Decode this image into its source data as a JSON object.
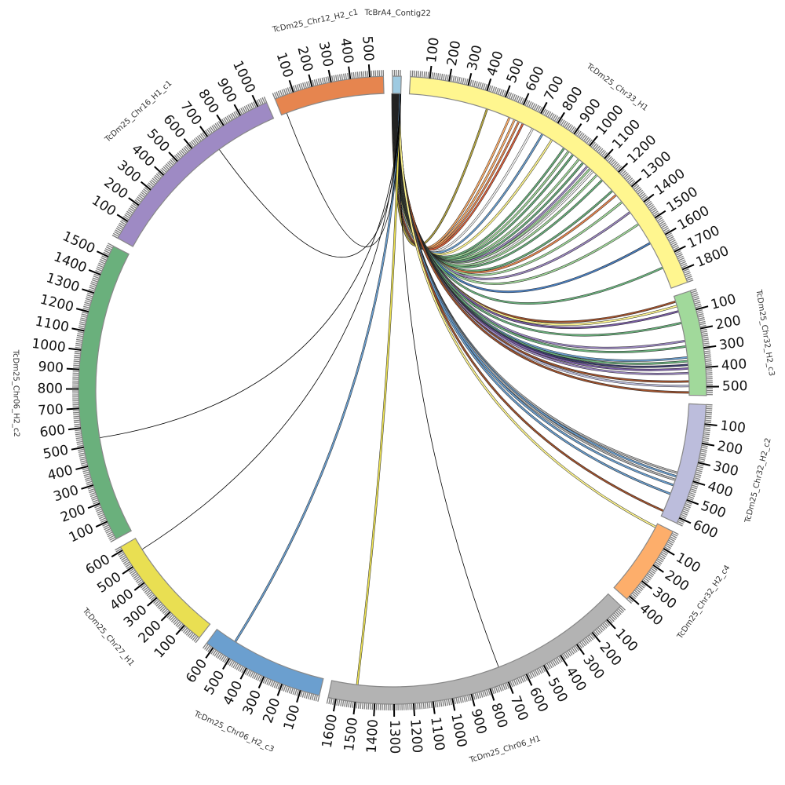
{
  "chart_data": {
    "type": "circos",
    "units": "tick units",
    "chromosomes": [
      {
        "id": "contig22",
        "label": "TcBrA4_Contig22",
        "length": 45,
        "color": "#9ecae1",
        "ticks": []
      },
      {
        "id": "chr33_h1",
        "label": "TcDm25_Chr33_H1",
        "length": 1870,
        "color": "#fff68f",
        "ticks": [
          "100",
          "200",
          "300",
          "400",
          "500",
          "600",
          "700",
          "800",
          "900",
          "1000",
          "1100",
          "1200",
          "1300",
          "1400",
          "1500",
          "1600",
          "1700",
          "1800"
        ]
      },
      {
        "id": "chr32_h2_c3",
        "label": "TcDm25_Chr32_H2_c3",
        "length": 545,
        "color": "#a1d99b",
        "ticks": [
          "100",
          "200",
          "300",
          "400",
          "500"
        ]
      },
      {
        "id": "chr32_h2_c2",
        "label": "TcDm25_Chr32_H2_c2",
        "length": 630,
        "color": "#bcbddc",
        "ticks": [
          "100",
          "200",
          "300",
          "400",
          "500",
          "600"
        ]
      },
      {
        "id": "chr32_h2_c4",
        "label": "TcDm25_Chr32_H2_c4",
        "length": 420,
        "color": "#fdae6b",
        "ticks": [
          "100",
          "200",
          "300",
          "400"
        ]
      },
      {
        "id": "chr06_h1",
        "label": "TcDm25_Chr06_H1",
        "length": 1640,
        "color": "#b3b3b3",
        "ticks": [
          "100",
          "200",
          "300",
          "400",
          "500",
          "600",
          "700",
          "800",
          "900",
          "1000",
          "1100",
          "1200",
          "1300",
          "1400",
          "1500",
          "1600"
        ]
      },
      {
        "id": "chr06_h2_c3",
        "label": "TcDm25_Chr06_H2_c3",
        "length": 640,
        "color": "#6b9fcf",
        "ticks": [
          "100",
          "200",
          "300",
          "400",
          "500",
          "600"
        ]
      },
      {
        "id": "chr27_h1",
        "label": "TcDm25_Chr27_H1",
        "length": 620,
        "color": "#e9df52",
        "ticks": [
          "100",
          "200",
          "300",
          "400",
          "500",
          "600"
        ]
      },
      {
        "id": "chr06_h2_c2",
        "label": "TcDm25_Chr06_H2_c2",
        "length": 1560,
        "color": "#6ab07c",
        "ticks": [
          "100",
          "200",
          "300",
          "400",
          "500",
          "600",
          "700",
          "800",
          "900",
          "1000",
          "1100",
          "1200",
          "1300",
          "1400",
          "1500"
        ]
      },
      {
        "id": "chr16_h1_c1",
        "label": "TcDm25_Chr16_H1_c1",
        "length": 1050,
        "color": "#9e8ac4",
        "ticks": [
          "100",
          "200",
          "300",
          "400",
          "500",
          "600",
          "700",
          "800",
          "900",
          "1000"
        ]
      },
      {
        "id": "chr12_h2_c1",
        "label": "TcDm25_Chr12_H2_c1",
        "length": 570,
        "color": "#e6854f",
        "ticks": [
          "100",
          "200",
          "300",
          "400",
          "500"
        ]
      }
    ],
    "links": [
      {
        "source": "contig22",
        "target": "chr33_h1",
        "pos": 430,
        "color": "#b5a642"
      },
      {
        "source": "contig22",
        "target": "chr33_h1",
        "pos": 560,
        "color": "#fdae6b"
      },
      {
        "source": "contig22",
        "target": "chr33_h1",
        "pos": 590,
        "color": "#fdae6b"
      },
      {
        "source": "contig22",
        "target": "chr33_h1",
        "pos": 615,
        "color": "#e6854f"
      },
      {
        "source": "contig22",
        "target": "chr33_h1",
        "pos": 640,
        "color": "#d95f3b"
      },
      {
        "source": "contig22",
        "target": "chr33_h1",
        "pos": 700,
        "color": "#f5f5f5"
      },
      {
        "source": "contig22",
        "target": "chr33_h1",
        "pos": 760,
        "color": "#6b9fcf"
      },
      {
        "source": "contig22",
        "target": "chr33_h1",
        "pos": 820,
        "color": "#fff68f"
      },
      {
        "source": "contig22",
        "target": "chr33_h1",
        "pos": 900,
        "color": "#6ab07c"
      },
      {
        "source": "contig22",
        "target": "chr33_h1",
        "pos": 930,
        "color": "#a1d99b"
      },
      {
        "source": "contig22",
        "target": "chr33_h1",
        "pos": 960,
        "color": "#6ab07c"
      },
      {
        "source": "contig22",
        "target": "chr33_h1",
        "pos": 1000,
        "color": "#a1d99b"
      },
      {
        "source": "contig22",
        "target": "chr33_h1",
        "pos": 1030,
        "color": "#6ab07c"
      },
      {
        "source": "contig22",
        "target": "chr33_h1",
        "pos": 1060,
        "color": "#9e8ac4"
      },
      {
        "source": "contig22",
        "target": "chr33_h1",
        "pos": 1080,
        "color": "#a1d99b"
      },
      {
        "source": "contig22",
        "target": "chr33_h1",
        "pos": 1100,
        "color": "#f5f5f5"
      },
      {
        "source": "contig22",
        "target": "chr33_h1",
        "pos": 1130,
        "color": "#a1d99b"
      },
      {
        "source": "contig22",
        "target": "chr33_h1",
        "pos": 1170,
        "color": "#6ab07c"
      },
      {
        "source": "contig22",
        "target": "chr33_h1",
        "pos": 1250,
        "color": "#6ab07c"
      },
      {
        "source": "contig22",
        "target": "chr33_h1",
        "pos": 1280,
        "color": "#e6854f"
      },
      {
        "source": "contig22",
        "target": "chr33_h1",
        "pos": 1330,
        "color": "#a1d99b"
      },
      {
        "source": "contig22",
        "target": "chr33_h1",
        "pos": 1400,
        "color": "#9e8ac4"
      },
      {
        "source": "contig22",
        "target": "chr33_h1",
        "pos": 1480,
        "color": "#a1d99b"
      },
      {
        "source": "contig22",
        "target": "chr33_h1",
        "pos": 1600,
        "color": "#4a7fc0"
      },
      {
        "source": "contig22",
        "target": "chr33_h1",
        "pos": 1750,
        "color": "#6ab07c"
      },
      {
        "source": "contig22",
        "target": "chr32_h2_c3",
        "pos": 30,
        "color": "#a0522d"
      },
      {
        "source": "contig22",
        "target": "chr32_h2_c3",
        "pos": 55,
        "color": "#fff68f"
      },
      {
        "source": "contig22",
        "target": "chr32_h2_c3",
        "pos": 85,
        "color": "#7b5ea7"
      },
      {
        "source": "contig22",
        "target": "chr32_h2_c3",
        "pos": 150,
        "color": "#6ab07c"
      },
      {
        "source": "contig22",
        "target": "chr32_h2_c3",
        "pos": 250,
        "color": "#9e8ac4"
      },
      {
        "source": "contig22",
        "target": "chr32_h2_c3",
        "pos": 280,
        "color": "#6ab07c"
      },
      {
        "source": "contig22",
        "target": "chr32_h2_c3",
        "pos": 340,
        "color": "#6b9fcf"
      },
      {
        "source": "contig22",
        "target": "chr32_h2_c3",
        "pos": 360,
        "color": "#6ab07c"
      },
      {
        "source": "contig22",
        "target": "chr32_h2_c3",
        "pos": 380,
        "color": "#3c3c6e"
      },
      {
        "source": "contig22",
        "target": "chr32_h2_c3",
        "pos": 400,
        "color": "#7b5ea7"
      },
      {
        "source": "contig22",
        "target": "chr32_h2_c3",
        "pos": 425,
        "color": "#9e8ac4"
      },
      {
        "source": "contig22",
        "target": "chr32_h2_c3",
        "pos": 470,
        "color": "#a0522d"
      },
      {
        "source": "contig22",
        "target": "chr32_h2_c3",
        "pos": 495,
        "color": "#bcbddc"
      },
      {
        "source": "contig22",
        "target": "chr32_h2_c3",
        "pos": 530,
        "color": "#a0522d"
      },
      {
        "source": "contig22",
        "target": "chr32_h2_c2",
        "pos": 380,
        "color": "#b3b3b3"
      },
      {
        "source": "contig22",
        "target": "chr32_h2_c2",
        "pos": 400,
        "color": "#6b9fcf"
      },
      {
        "source": "contig22",
        "target": "chr32_h2_c2",
        "pos": 420,
        "color": "#b3b3b3"
      },
      {
        "source": "contig22",
        "target": "chr32_h2_c2",
        "pos": 450,
        "color": "#6b9fcf"
      },
      {
        "source": "contig22",
        "target": "chr32_h2_c2",
        "pos": 500,
        "color": "#6b9fcf"
      },
      {
        "source": "contig22",
        "target": "chr32_h2_c2",
        "pos": 600,
        "color": "#a0522d"
      },
      {
        "source": "contig22",
        "target": "chr32_h2_c4",
        "pos": 20,
        "color": "#fff68f"
      },
      {
        "source": "contig22",
        "target": "chr06_h1",
        "pos": 720,
        "color": "#000000"
      },
      {
        "source": "contig22",
        "target": "chr06_h1",
        "pos": 1500,
        "color": "#e9df52"
      },
      {
        "source": "contig22",
        "target": "chr06_h2_c3",
        "pos": 520,
        "color": "#6b9fcf"
      },
      {
        "source": "contig22",
        "target": "chr27_h1",
        "pos": 550,
        "color": "#000000"
      },
      {
        "source": "contig22",
        "target": "chr06_h2_c2",
        "pos": 535,
        "color": "#000000"
      },
      {
        "source": "contig22",
        "target": "chr16_h1_c1",
        "pos": 710,
        "color": "#000000"
      },
      {
        "source": "contig22",
        "target": "chr12_h2_c1",
        "pos": 30,
        "color": "#000000"
      }
    ]
  }
}
